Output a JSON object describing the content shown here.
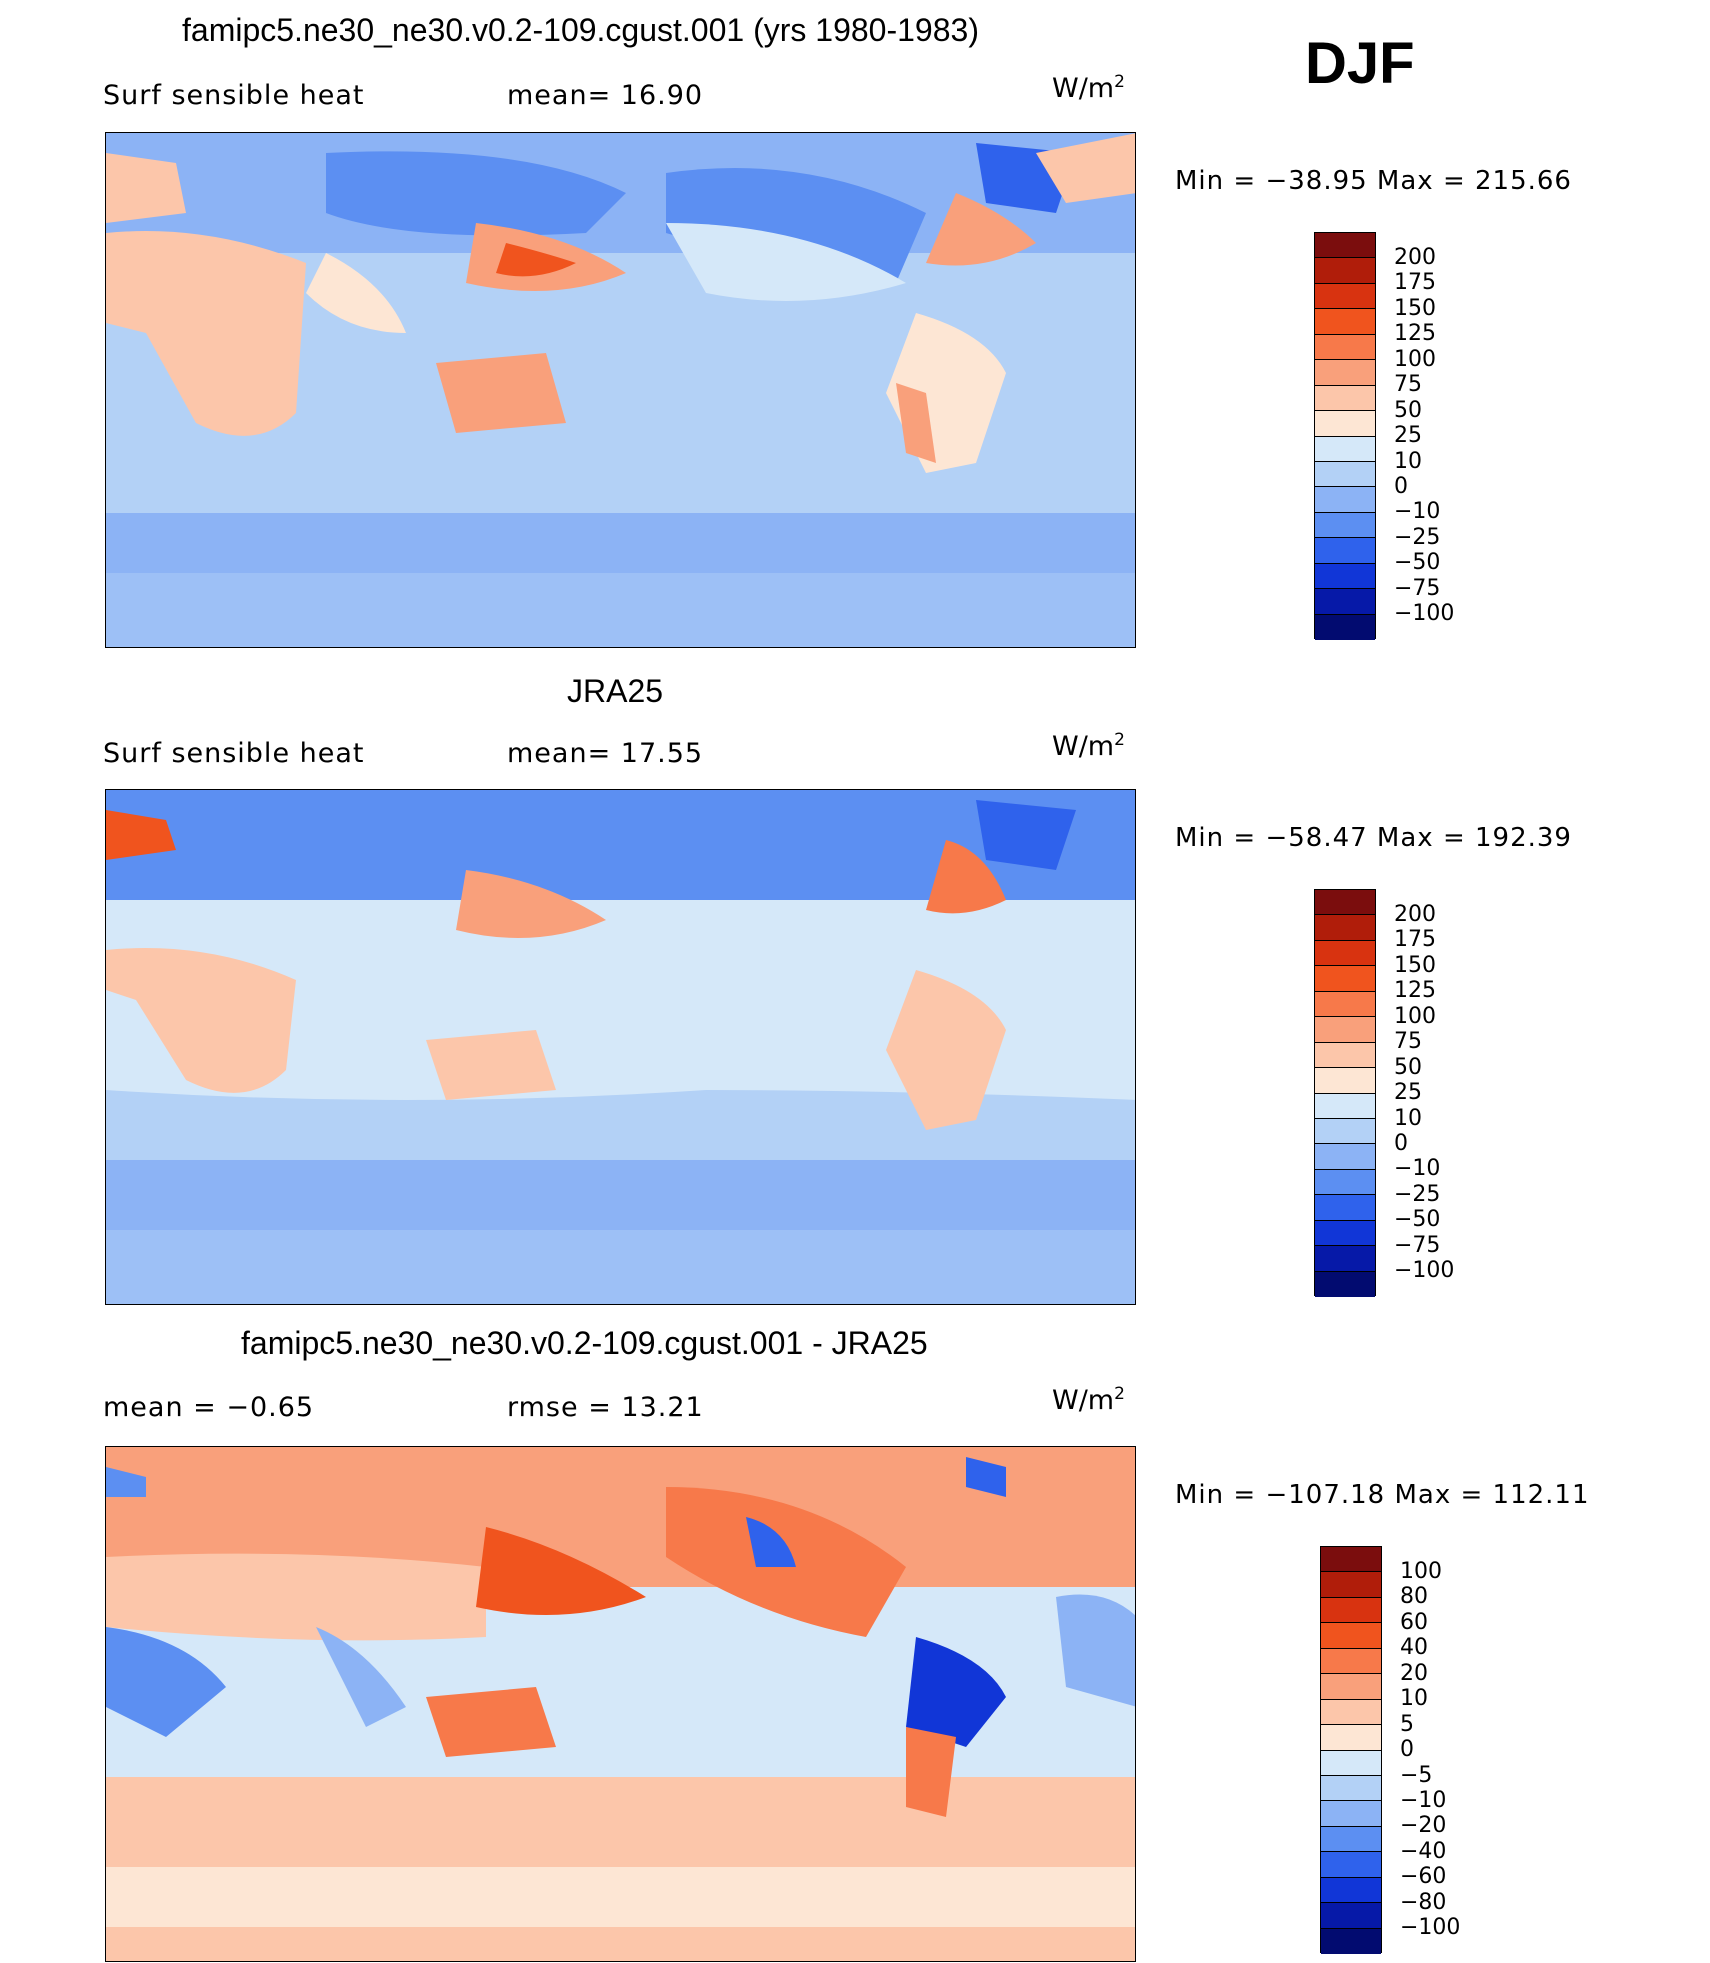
{
  "season": "DJF",
  "panels": [
    {
      "title": "famipc5.ne30_ne30.v0.2-109.cgust.001 (yrs 1980-1983)",
      "left_label": "Surf  sensible  heat",
      "center_label": "mean=   16.90",
      "units": "W/m",
      "units_sup": "2",
      "minmax": "Min  =  −38.95  Max  =  215.66",
      "levels": [
        "200",
        "175",
        "150",
        "125",
        "100",
        "75",
        "50",
        "25",
        "10",
        "0",
        "−10",
        "−25",
        "−50",
        "−75",
        "−100"
      ],
      "colors": [
        "#7b0d0d",
        "#b01d0a",
        "#d83310",
        "#f0541e",
        "#f7794a",
        "#f9a07b",
        "#fcc6aa",
        "#fde6d4",
        "#d5e8f9",
        "#b3d1f6",
        "#8cb3f5",
        "#5c8ff2",
        "#2f62ec",
        "#1136d7",
        "#0619a8",
        "#020b70"
      ]
    },
    {
      "title": "JRA25",
      "left_label": "Surf  sensible  heat",
      "center_label": "mean=   17.55",
      "units": "W/m",
      "units_sup": "2",
      "minmax": "Min  =  −58.47  Max  =  192.39",
      "levels": [
        "200",
        "175",
        "150",
        "125",
        "100",
        "75",
        "50",
        "25",
        "10",
        "0",
        "−10",
        "−25",
        "−50",
        "−75",
        "−100"
      ],
      "colors": [
        "#7b0d0d",
        "#b01d0a",
        "#d83310",
        "#f0541e",
        "#f7794a",
        "#f9a07b",
        "#fcc6aa",
        "#fde6d4",
        "#d5e8f9",
        "#b3d1f6",
        "#8cb3f5",
        "#5c8ff2",
        "#2f62ec",
        "#1136d7",
        "#0619a8",
        "#020b70"
      ]
    },
    {
      "title": "famipc5.ne30_ne30.v0.2-109.cgust.001 - JRA25",
      "left_label": "mean  =    −0.65",
      "center_label": "rmse  =    13.21",
      "units": "W/m",
      "units_sup": "2",
      "minmax": "Min  =  −107.18  Max  =  112.11",
      "levels": [
        "100",
        "80",
        "60",
        "40",
        "20",
        "10",
        "5",
        "0",
        "−5",
        "−10",
        "−20",
        "−40",
        "−60",
        "−80",
        "−100"
      ],
      "colors": [
        "#7b0d0d",
        "#b01d0a",
        "#d83310",
        "#f0541e",
        "#f7794a",
        "#f9a07b",
        "#fcc6aa",
        "#fde6d4",
        "#d5e8f9",
        "#b3d1f6",
        "#8cb3f5",
        "#5c8ff2",
        "#2f62ec",
        "#1136d7",
        "#0619a8",
        "#020b70"
      ]
    }
  ]
}
